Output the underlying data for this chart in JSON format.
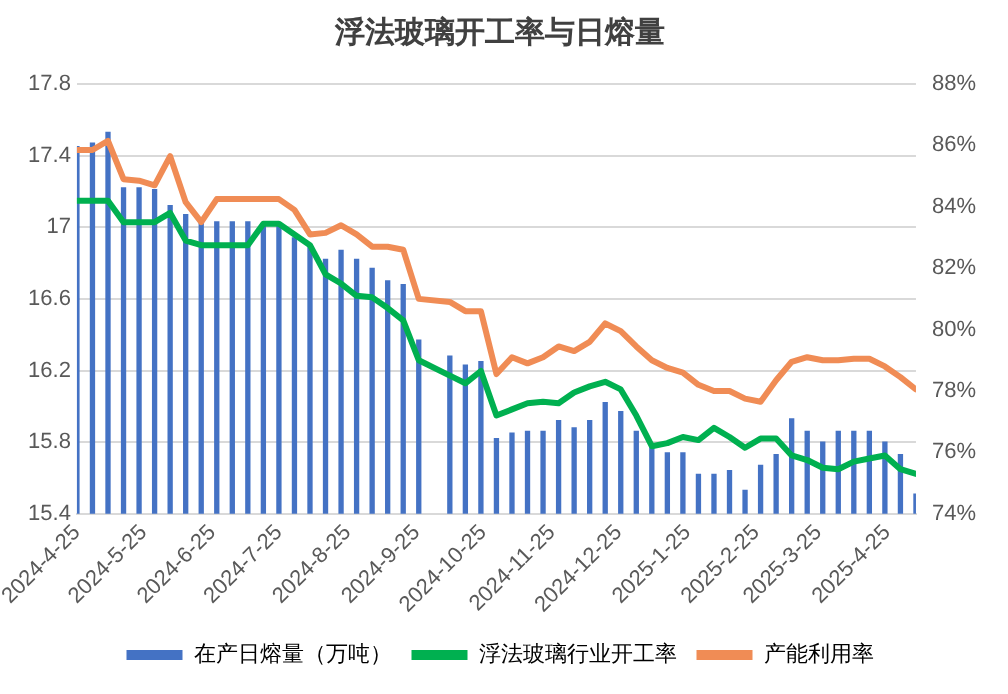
{
  "chart_data": {
    "type": "bar",
    "title": "浮法玻璃开工率与日熔量",
    "x": [
      "2024-04-25",
      "2024-05-02",
      "2024-05-09",
      "2024-05-16",
      "2024-05-23",
      "2024-05-30",
      "2024-06-06",
      "2024-06-13",
      "2024-06-20",
      "2024-06-27",
      "2024-07-04",
      "2024-07-11",
      "2024-07-18",
      "2024-07-25",
      "2024-08-01",
      "2024-08-08",
      "2024-08-15",
      "2024-08-22",
      "2024-08-29",
      "2024-09-05",
      "2024-09-12",
      "2024-09-19",
      "2024-09-26",
      "2024-10-03",
      "2024-10-10",
      "2024-10-17",
      "2024-10-24",
      "2024-10-31",
      "2024-11-07",
      "2024-11-14",
      "2024-11-21",
      "2024-11-28",
      "2024-12-05",
      "2024-12-12",
      "2024-12-19",
      "2024-12-26",
      "2025-01-02",
      "2025-01-09",
      "2025-01-16",
      "2025-01-23",
      "2025-01-30",
      "2025-02-06",
      "2025-02-13",
      "2025-02-20",
      "2025-02-27",
      "2025-03-06",
      "2025-03-13",
      "2025-03-20",
      "2025-03-27",
      "2025-04-03",
      "2025-04-10",
      "2025-04-17",
      "2025-04-24",
      "2025-05-01",
      "2025-05-08"
    ],
    "series": [
      {
        "name": "在产日熔量（万吨）",
        "color": "#4472c4",
        "values": [
          17.45,
          17.47,
          17.53,
          17.22,
          17.22,
          17.21,
          17.12,
          17.07,
          17.02,
          17.03,
          17.03,
          17.03,
          17.02,
          17.01,
          16.94,
          16.9,
          16.82,
          16.87,
          16.82,
          16.77,
          16.7,
          16.68,
          16.37,
          null,
          16.28,
          16.23,
          16.25,
          15.82,
          15.85,
          15.86,
          15.86,
          15.92,
          15.88,
          15.92,
          16.02,
          15.97,
          15.86,
          15.79,
          15.74,
          15.74,
          15.62,
          15.62,
          15.64,
          15.53,
          15.67,
          15.73,
          15.93,
          15.86,
          15.8,
          15.86,
          15.86,
          15.86,
          15.8,
          15.73,
          15.51
        ]
      },
      {
        "name": "浮法玻璃行业开工率",
        "type": "line",
        "axis": "y2",
        "color": "#00b050",
        "values": [
          84.2,
          84.2,
          84.2,
          83.5,
          83.5,
          83.5,
          83.8,
          82.9,
          82.75,
          82.75,
          82.75,
          82.75,
          83.45,
          83.45,
          83.1,
          82.75,
          81.8,
          81.5,
          81.1,
          81.05,
          80.7,
          80.3,
          79.0,
          null,
          78.5,
          78.25,
          78.65,
          77.2,
          77.4,
          77.6,
          77.65,
          77.6,
          77.95,
          78.15,
          78.3,
          78.05,
          77.2,
          76.2,
          76.3,
          76.5,
          76.4,
          76.8,
          76.5,
          76.15,
          76.45,
          76.45,
          75.9,
          75.75,
          75.5,
          75.45,
          75.7,
          75.8,
          75.9,
          75.45,
          75.3
        ]
      },
      {
        "name": "产能利用率",
        "type": "line",
        "axis": "y2",
        "color": "#f08c55",
        "values": [
          85.85,
          85.85,
          86.15,
          84.9,
          84.85,
          84.7,
          85.65,
          84.15,
          83.5,
          84.25,
          84.25,
          84.25,
          84.25,
          84.25,
          83.9,
          83.1,
          83.15,
          83.4,
          83.1,
          82.7,
          82.7,
          82.6,
          81.0,
          null,
          80.9,
          80.6,
          80.6,
          78.55,
          79.1,
          78.9,
          79.1,
          79.45,
          79.3,
          79.6,
          80.2,
          79.95,
          79.45,
          79.0,
          78.75,
          78.6,
          78.2,
          78.0,
          78.0,
          77.75,
          77.65,
          78.35,
          78.95,
          79.1,
          79.0,
          79.0,
          79.05,
          79.05,
          78.8,
          78.45,
          78.05
        ]
      }
    ],
    "xlim": [
      "2024-04-25",
      "2025-05-08"
    ],
    "xticks": [
      {
        "value": "2024-04-25",
        "label": "2024-4-25"
      },
      {
        "value": "2024-05-25",
        "label": "2024-5-25"
      },
      {
        "value": "2024-06-25",
        "label": "2024-6-25"
      },
      {
        "value": "2024-07-25",
        "label": "2024-7-25"
      },
      {
        "value": "2024-08-25",
        "label": "2024-8-25"
      },
      {
        "value": "2024-09-25",
        "label": "2024-9-25"
      },
      {
        "value": "2024-10-25",
        "label": "2024-10-25"
      },
      {
        "value": "2024-11-25",
        "label": "2024-11-25"
      },
      {
        "value": "2024-12-25",
        "label": "2024-12-25"
      },
      {
        "value": "2025-01-25",
        "label": "2025-1-25"
      },
      {
        "value": "2025-02-25",
        "label": "2025-2-25"
      },
      {
        "value": "2025-03-25",
        "label": "2025-3-25"
      },
      {
        "value": "2025-04-25",
        "label": "2025-4-25"
      }
    ],
    "ylim": [
      15.4,
      17.8
    ],
    "yticks": [
      15.4,
      15.8,
      16.2,
      16.6,
      17,
      17.4,
      17.8
    ],
    "y2lim": [
      74,
      88
    ],
    "y2ticks": [
      {
        "value": 74,
        "label": "74%"
      },
      {
        "value": 76,
        "label": "76%"
      },
      {
        "value": 78,
        "label": "78%"
      },
      {
        "value": 80,
        "label": "80%"
      },
      {
        "value": 82,
        "label": "82%"
      },
      {
        "value": 84,
        "label": "84%"
      },
      {
        "value": 86,
        "label": "86%"
      },
      {
        "value": 88,
        "label": "88%"
      }
    ],
    "grid": "y",
    "legend": "bottom",
    "marker": "none",
    "line_style": "solid"
  }
}
